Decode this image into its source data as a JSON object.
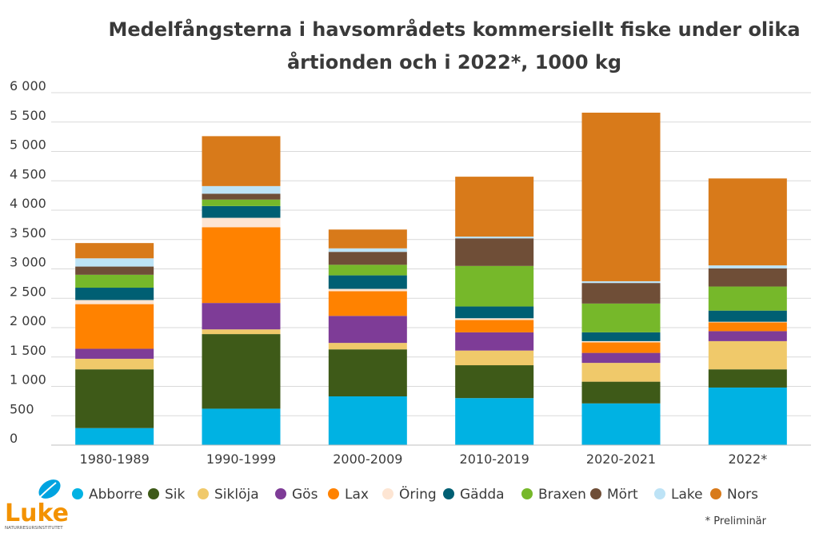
{
  "chart_data": {
    "type": "bar",
    "stacked": true,
    "title_line1": "Medelfångsterna i havsområdets  kommersiellt fiske under olika",
    "title_line2": "årtionden och i 2022*, 1000 kg",
    "categories": [
      "1980-1989",
      "1990-1999",
      "2000-2009",
      "2010-2019",
      "2020-2021",
      "2022*"
    ],
    "ylim": [
      0,
      6000
    ],
    "yticks": [
      0,
      500,
      1000,
      1500,
      2000,
      2500,
      3000,
      3500,
      4000,
      4500,
      5000,
      5500,
      6000
    ],
    "ytick_labels": [
      "0",
      "500",
      "1 000",
      "1 500",
      "2 000",
      "2 500",
      "3 000",
      "3 500",
      "4 000",
      "4 500",
      "5 000",
      "5 500",
      "6 000"
    ],
    "grid": true,
    "legend_position": "bottom",
    "series": [
      {
        "name": "Abborre",
        "color": "#00b2e3",
        "values": [
          290,
          620,
          830,
          800,
          710,
          980
        ]
      },
      {
        "name": "Sik",
        "color": "#3e5a18",
        "values": [
          1000,
          1270,
          800,
          560,
          370,
          310
        ]
      },
      {
        "name": "Siklöja",
        "color": "#f0c96a",
        "values": [
          180,
          80,
          110,
          250,
          320,
          480
        ]
      },
      {
        "name": "Gös",
        "color": "#7e3c97",
        "values": [
          170,
          450,
          460,
          310,
          170,
          170
        ]
      },
      {
        "name": "Lax",
        "color": "#ff8200",
        "values": [
          760,
          1290,
          420,
          210,
          180,
          150
        ]
      },
      {
        "name": "Öring",
        "color": "#fde5d3",
        "values": [
          70,
          160,
          40,
          30,
          20,
          10
        ]
      },
      {
        "name": "Gädda",
        "color": "#005f73",
        "values": [
          210,
          200,
          230,
          200,
          150,
          190
        ]
      },
      {
        "name": "Braxen",
        "color": "#76b82a",
        "values": [
          220,
          110,
          180,
          690,
          490,
          410
        ]
      },
      {
        "name": "Mört",
        "color": "#6f4e37",
        "values": [
          140,
          100,
          220,
          470,
          350,
          310
        ]
      },
      {
        "name": "Lake",
        "color": "#bde3f6",
        "values": [
          140,
          130,
          60,
          30,
          30,
          50
        ]
      },
      {
        "name": "Nors",
        "color": "#d87a1a",
        "values": [
          260,
          850,
          320,
          1020,
          2870,
          1480
        ]
      }
    ]
  },
  "footnote": "* Preliminär",
  "logo": {
    "word": "Luke",
    "subtitle": "NATURRESURSINSTITUTET"
  }
}
